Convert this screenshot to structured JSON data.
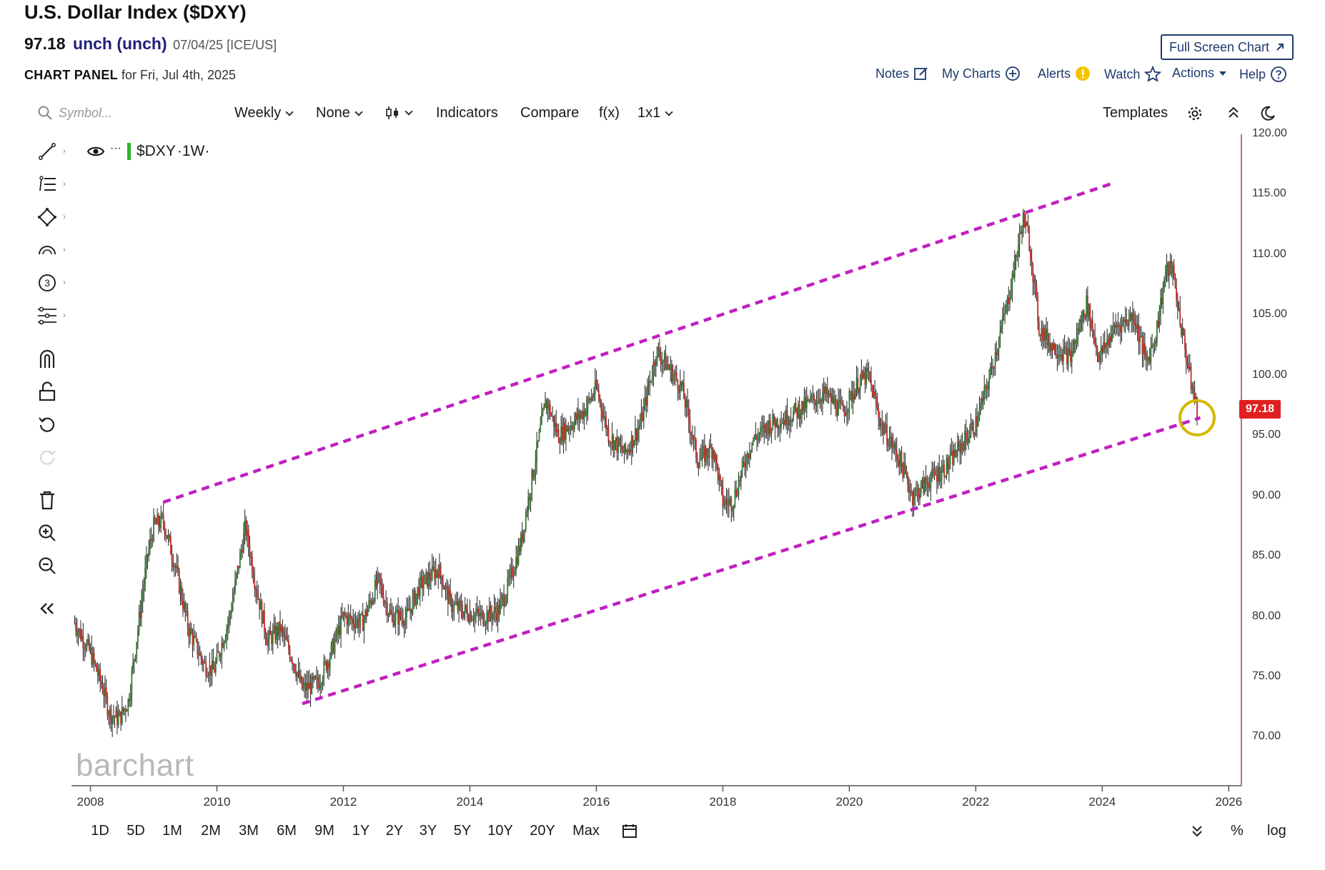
{
  "header": {
    "title": "U.S. Dollar Index ($DXY)",
    "price": "97.18",
    "change": "unch (unch)",
    "meta": "07/04/25 [ICE/US]",
    "panel_label": "CHART PANEL",
    "panel_date": "for Fri, Jul 4th, 2025",
    "full_screen_label": "Full Screen Chart"
  },
  "top_links": {
    "notes": "Notes",
    "my_charts": "My Charts",
    "alerts": "Alerts",
    "watch": "Watch",
    "actions": "Actions",
    "help": "Help"
  },
  "toolbar": {
    "symbol_placeholder": "Symbol...",
    "interval": "Weekly",
    "study": "None",
    "indicators": "Indicators",
    "compare": "Compare",
    "fx": "f(x)",
    "layout": "1x1",
    "templates": "Templates"
  },
  "legend": {
    "symbol": "$DXY",
    "interval": "·1W·",
    "dots": "···"
  },
  "icons": [
    "line-tool-icon",
    "fib-icon",
    "shape-icon",
    "arc-icon",
    "elliott-icon",
    "pattern-icon",
    "magnet-icon",
    "lock-icon",
    "undo-icon",
    "redo-icon",
    "trash-icon",
    "zoom-in-icon",
    "zoom-out-icon",
    "collapse-icon",
    "eye-icon",
    "gear-icon",
    "chevron-up-icon",
    "moon-icon",
    "calendar-icon",
    "search-icon"
  ],
  "colors": {
    "channel": "#c020c0",
    "up_candle": "#2e7d32",
    "down_candle": "#c62828",
    "price_tag": "#e02020",
    "highlight_circle": "#d4b800",
    "axis_line": "#b07090"
  },
  "bottom": {
    "ranges": [
      "1D",
      "5D",
      "1M",
      "2M",
      "3M",
      "6M",
      "9M",
      "1Y",
      "2Y",
      "3Y",
      "5Y",
      "10Y",
      "20Y",
      "Max"
    ],
    "percent": "%",
    "log": "log",
    "watermark": "barchart"
  },
  "chart_data": {
    "type": "candlestick",
    "title": "U.S. Dollar Index ($DXY)",
    "interval": "weekly",
    "last": 97.18,
    "xlim": [
      2007.7,
      2026.2
    ],
    "ylim": [
      66,
      120
    ],
    "x_ticks": [
      "2008",
      "2010",
      "2012",
      "2014",
      "2016",
      "2018",
      "2020",
      "2022",
      "2024",
      "2026"
    ],
    "y_ticks": [
      "120.00",
      "115.00",
      "110.00",
      "105.00",
      "100.00",
      "95.00",
      "90.00",
      "85.00",
      "80.00",
      "75.00",
      "70.00"
    ],
    "approx_path": [
      [
        2007.75,
        79.5
      ],
      [
        2008.0,
        77.0
      ],
      [
        2008.2,
        74.0
      ],
      [
        2008.3,
        72.0
      ],
      [
        2008.45,
        71.5
      ],
      [
        2008.6,
        73.0
      ],
      [
        2008.75,
        79.0
      ],
      [
        2008.9,
        85.0
      ],
      [
        2009.0,
        87.5
      ],
      [
        2009.15,
        88.0
      ],
      [
        2009.35,
        84.0
      ],
      [
        2009.55,
        79.0
      ],
      [
        2009.8,
        76.0
      ],
      [
        2009.95,
        75.5
      ],
      [
        2010.2,
        80.0
      ],
      [
        2010.4,
        86.0
      ],
      [
        2010.45,
        87.5
      ],
      [
        2010.6,
        83.0
      ],
      [
        2010.8,
        78.0
      ],
      [
        2011.0,
        79.0
      ],
      [
        2011.2,
        76.5
      ],
      [
        2011.35,
        74.0
      ],
      [
        2011.6,
        74.5
      ],
      [
        2011.8,
        77.0
      ],
      [
        2012.0,
        80.0
      ],
      [
        2012.3,
        79.5
      ],
      [
        2012.55,
        83.0
      ],
      [
        2012.75,
        80.0
      ],
      [
        2013.0,
        80.0
      ],
      [
        2013.2,
        82.5
      ],
      [
        2013.5,
        84.0
      ],
      [
        2013.7,
        81.0
      ],
      [
        2013.9,
        80.5
      ],
      [
        2014.2,
        80.0
      ],
      [
        2014.45,
        80.5
      ],
      [
        2014.6,
        82.5
      ],
      [
        2014.8,
        86.0
      ],
      [
        2015.0,
        92.0
      ],
      [
        2015.2,
        98.0
      ],
      [
        2015.4,
        95.0
      ],
      [
        2015.6,
        96.0
      ],
      [
        2015.8,
        97.0
      ],
      [
        2016.0,
        99.0
      ],
      [
        2016.2,
        95.0
      ],
      [
        2016.45,
        93.5
      ],
      [
        2016.7,
        96.0
      ],
      [
        2016.95,
        102.0
      ],
      [
        2017.1,
        101.0
      ],
      [
        2017.35,
        99.0
      ],
      [
        2017.6,
        93.0
      ],
      [
        2017.85,
        94.0
      ],
      [
        2018.0,
        89.5
      ],
      [
        2018.15,
        89.5
      ],
      [
        2018.45,
        94.5
      ],
      [
        2018.75,
        96.0
      ],
      [
        2019.0,
        96.5
      ],
      [
        2019.3,
        97.5
      ],
      [
        2019.6,
        98.5
      ],
      [
        2019.9,
        97.0
      ],
      [
        2020.15,
        99.5
      ],
      [
        2020.3,
        100.0
      ],
      [
        2020.5,
        96.0
      ],
      [
        2020.8,
        93.0
      ],
      [
        2021.0,
        90.0
      ],
      [
        2021.3,
        91.5
      ],
      [
        2021.55,
        92.5
      ],
      [
        2021.8,
        94.5
      ],
      [
        2022.0,
        96.0
      ],
      [
        2022.2,
        99.5
      ],
      [
        2022.5,
        106.0
      ],
      [
        2022.75,
        113.0
      ],
      [
        2022.85,
        111.0
      ],
      [
        2023.0,
        104.0
      ],
      [
        2023.2,
        102.5
      ],
      [
        2023.5,
        101.5
      ],
      [
        2023.75,
        106.0
      ],
      [
        2023.95,
        101.5
      ],
      [
        2024.2,
        104.0
      ],
      [
        2024.5,
        105.0
      ],
      [
        2024.7,
        101.0
      ],
      [
        2024.85,
        103.5
      ],
      [
        2025.0,
        108.5
      ],
      [
        2025.1,
        109.0
      ],
      [
        2025.25,
        104.0
      ],
      [
        2025.4,
        99.5
      ],
      [
        2025.5,
        97.18
      ]
    ],
    "annotations": [
      {
        "type": "dashed-line",
        "name": "channel-upper",
        "from": [
          2009.15,
          89.5
        ],
        "to": [
          2024.2,
          116.0
        ]
      },
      {
        "type": "dashed-line",
        "name": "channel-lower",
        "from": [
          2011.35,
          72.8
        ],
        "to": [
          2025.55,
          96.5
        ]
      },
      {
        "type": "circle",
        "name": "current-price-highlight",
        "at": [
          2025.5,
          96.5
        ]
      }
    ]
  }
}
